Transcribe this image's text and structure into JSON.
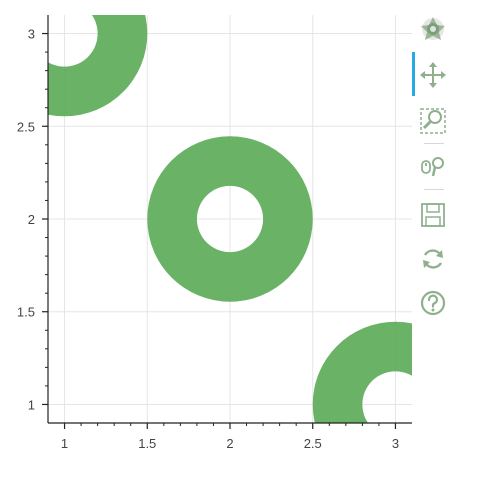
{
  "chart_data": {
    "type": "scatter",
    "glyph": "annulus",
    "title": "",
    "xlabel": "",
    "ylabel": "",
    "xlim": [
      0.9,
      3.1
    ],
    "ylim": [
      0.9,
      3.1
    ],
    "grid": true,
    "x_ticks": [
      "1",
      "1.5",
      "2",
      "2.5",
      "3"
    ],
    "y_ticks": [
      "1",
      "1.5",
      "2",
      "2.5",
      "3"
    ],
    "x_tick_values": [
      1,
      1.5,
      2,
      2.5,
      3
    ],
    "y_tick_values": [
      1,
      1.5,
      2,
      2.5,
      3
    ],
    "points": [
      {
        "x": 1,
        "y": 3
      },
      {
        "x": 2,
        "y": 2
      },
      {
        "x": 3,
        "y": 1
      }
    ],
    "inner_radius": 0.2,
    "outer_radius": 0.5,
    "fill_color": "#5aaa55",
    "fill_alpha": 0.9
  },
  "toolbar": {
    "tools": [
      {
        "name": "bokeh-logo-icon"
      },
      {
        "name": "pan-icon"
      },
      {
        "name": "box-zoom-icon"
      },
      {
        "name": "wheel-zoom-icon"
      },
      {
        "name": "save-icon"
      },
      {
        "name": "reset-icon"
      },
      {
        "name": "help-icon"
      }
    ],
    "active_color": "#26aae1"
  }
}
